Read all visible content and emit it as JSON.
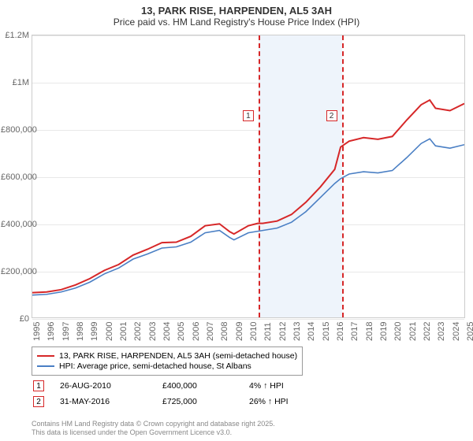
{
  "title": "13, PARK RISE, HARPENDEN, AL5 3AH",
  "subtitle": "Price paid vs. HM Land Registry's House Price Index (HPI)",
  "chart": {
    "type": "line",
    "x_years": [
      1995,
      1996,
      1997,
      1998,
      1999,
      2000,
      2001,
      2002,
      2003,
      2004,
      2005,
      2006,
      2007,
      2008,
      2009,
      2010,
      2011,
      2012,
      2013,
      2014,
      2015,
      2016,
      2017,
      2018,
      2019,
      2020,
      2021,
      2022,
      2023,
      2024,
      2025
    ],
    "ylim": [
      0,
      1200000
    ],
    "ytick_step": 200000,
    "ytick_labels": [
      "£0",
      "£200,000",
      "£400,000",
      "£600,000",
      "£800,000",
      "£1M",
      "£1.2M"
    ],
    "grid_color": "#e8e8e8",
    "background_color": "#ffffff",
    "band_color": "#eef4fb",
    "band_range": [
      2010.65,
      2016.41
    ],
    "series": [
      {
        "name": "hpi",
        "label": "HPI: Average price, semi-detached house, St Albans",
        "color": "#4a7fc4",
        "width": 1.6,
        "data": [
          [
            1995,
            95000
          ],
          [
            1996,
            98000
          ],
          [
            1997,
            108000
          ],
          [
            1998,
            125000
          ],
          [
            1999,
            150000
          ],
          [
            2000,
            185000
          ],
          [
            2001,
            210000
          ],
          [
            2002,
            248000
          ],
          [
            2003,
            270000
          ],
          [
            2004,
            295000
          ],
          [
            2005,
            300000
          ],
          [
            2006,
            320000
          ],
          [
            2007,
            360000
          ],
          [
            2008,
            370000
          ],
          [
            2008.7,
            340000
          ],
          [
            2009,
            330000
          ],
          [
            2010,
            360000
          ],
          [
            2011,
            370000
          ],
          [
            2012,
            380000
          ],
          [
            2013,
            405000
          ],
          [
            2014,
            450000
          ],
          [
            2015,
            510000
          ],
          [
            2016,
            570000
          ],
          [
            2016.4,
            590000
          ],
          [
            2017,
            610000
          ],
          [
            2018,
            620000
          ],
          [
            2019,
            615000
          ],
          [
            2020,
            625000
          ],
          [
            2021,
            680000
          ],
          [
            2022,
            740000
          ],
          [
            2022.6,
            760000
          ],
          [
            2023,
            730000
          ],
          [
            2024,
            720000
          ],
          [
            2025,
            735000
          ]
        ]
      },
      {
        "name": "price-paid",
        "label": "13, PARK RISE, HARPENDEN, AL5 3AH (semi-detached house)",
        "color": "#d62728",
        "width": 2.0,
        "data": [
          [
            1995,
            105000
          ],
          [
            1996,
            108000
          ],
          [
            1997,
            118000
          ],
          [
            1998,
            138000
          ],
          [
            1999,
            165000
          ],
          [
            2000,
            200000
          ],
          [
            2001,
            225000
          ],
          [
            2002,
            265000
          ],
          [
            2003,
            290000
          ],
          [
            2004,
            318000
          ],
          [
            2005,
            320000
          ],
          [
            2006,
            345000
          ],
          [
            2007,
            390000
          ],
          [
            2008,
            398000
          ],
          [
            2008.7,
            365000
          ],
          [
            2009,
            355000
          ],
          [
            2010,
            390000
          ],
          [
            2010.65,
            400000
          ],
          [
            2011,
            400000
          ],
          [
            2012,
            410000
          ],
          [
            2013,
            438000
          ],
          [
            2014,
            490000
          ],
          [
            2015,
            555000
          ],
          [
            2016,
            630000
          ],
          [
            2016.41,
            725000
          ],
          [
            2017,
            750000
          ],
          [
            2018,
            765000
          ],
          [
            2019,
            758000
          ],
          [
            2020,
            770000
          ],
          [
            2021,
            840000
          ],
          [
            2022,
            905000
          ],
          [
            2022.6,
            925000
          ],
          [
            2023,
            890000
          ],
          [
            2024,
            880000
          ],
          [
            2025,
            910000
          ]
        ]
      }
    ],
    "markers": [
      {
        "n": "1",
        "x": 2010.65,
        "color": "#d62728",
        "box_y": 95
      },
      {
        "n": "2",
        "x": 2016.41,
        "color": "#d62728",
        "box_y": 95
      }
    ]
  },
  "transactions": [
    {
      "n": "1",
      "date": "26-AUG-2010",
      "price": "£400,000",
      "delta": "4% ↑ HPI"
    },
    {
      "n": "2",
      "date": "31-MAY-2016",
      "price": "£725,000",
      "delta": "26% ↑ HPI"
    }
  ],
  "footer1": "Contains HM Land Registry data © Crown copyright and database right 2025.",
  "footer2": "This data is licensed under the Open Government Licence v3.0."
}
